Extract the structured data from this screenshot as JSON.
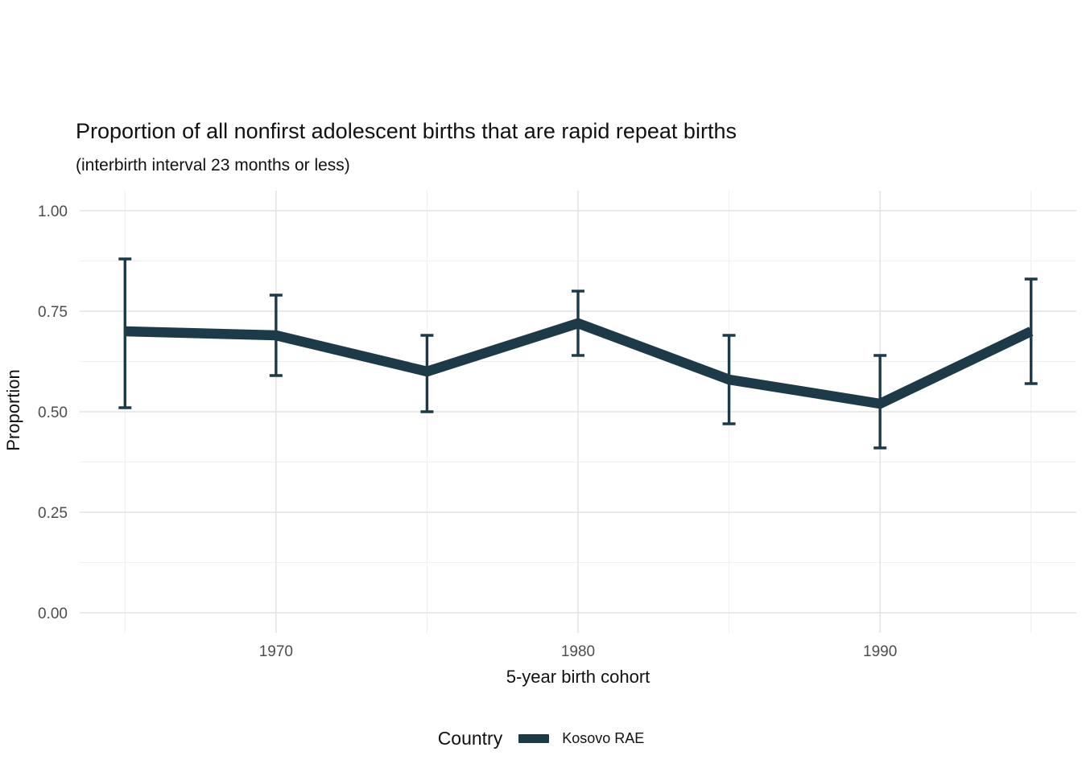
{
  "title": "Proportion of all nonfirst adolescent births that are rapid repeat births",
  "subtitle": "(interbirth interval 23 months or less)",
  "y_axis": {
    "label": "Proportion",
    "tick_labels": [
      "0.00",
      "0.25",
      "0.50",
      "0.75",
      "1.00"
    ],
    "major_breaks": [
      0,
      0.25,
      0.5,
      0.75,
      1.0
    ],
    "minor_breaks": [
      0.125,
      0.375,
      0.625,
      0.875
    ]
  },
  "x_axis": {
    "label": "5-year birth cohort",
    "tick_labels": [
      "1970",
      "1980",
      "1990"
    ],
    "major_breaks": [
      1970,
      1980,
      1990
    ],
    "minor_breaks": [
      1965,
      1975,
      1985,
      1995
    ]
  },
  "legend": {
    "title": "Country",
    "entries": [
      {
        "label": "Kosovo RAE",
        "color": "#1c3a47",
        "marker": "line-swatch"
      }
    ],
    "position": "bottom"
  },
  "colors": {
    "series": "#1c3a47",
    "grid_major": "#e4e4e4",
    "grid_minor": "#f0f0f0",
    "tick_text": "#4d4d4d",
    "text": "#111111",
    "background": "#ffffff"
  },
  "chart_data": {
    "type": "line",
    "title": "Proportion of all nonfirst adolescent births that are rapid repeat births",
    "subtitle": "(interbirth interval 23 months or less)",
    "xlabel": "5-year birth cohort",
    "ylabel": "Proportion",
    "xlim": [
      1965,
      1995
    ],
    "ylim": [
      0,
      1
    ],
    "grid": true,
    "error_bars": true,
    "legend_position": "bottom",
    "series": [
      {
        "name": "Kosovo RAE",
        "color": "#1c3a47",
        "x": [
          1965,
          1970,
          1975,
          1980,
          1985,
          1990,
          1995
        ],
        "y": [
          0.7,
          0.69,
          0.6,
          0.72,
          0.58,
          0.52,
          0.7
        ],
        "ci_low": [
          0.51,
          0.59,
          0.5,
          0.64,
          0.47,
          0.41,
          0.57
        ],
        "ci_high": [
          0.88,
          0.79,
          0.69,
          0.8,
          0.69,
          0.64,
          0.83
        ]
      }
    ]
  }
}
